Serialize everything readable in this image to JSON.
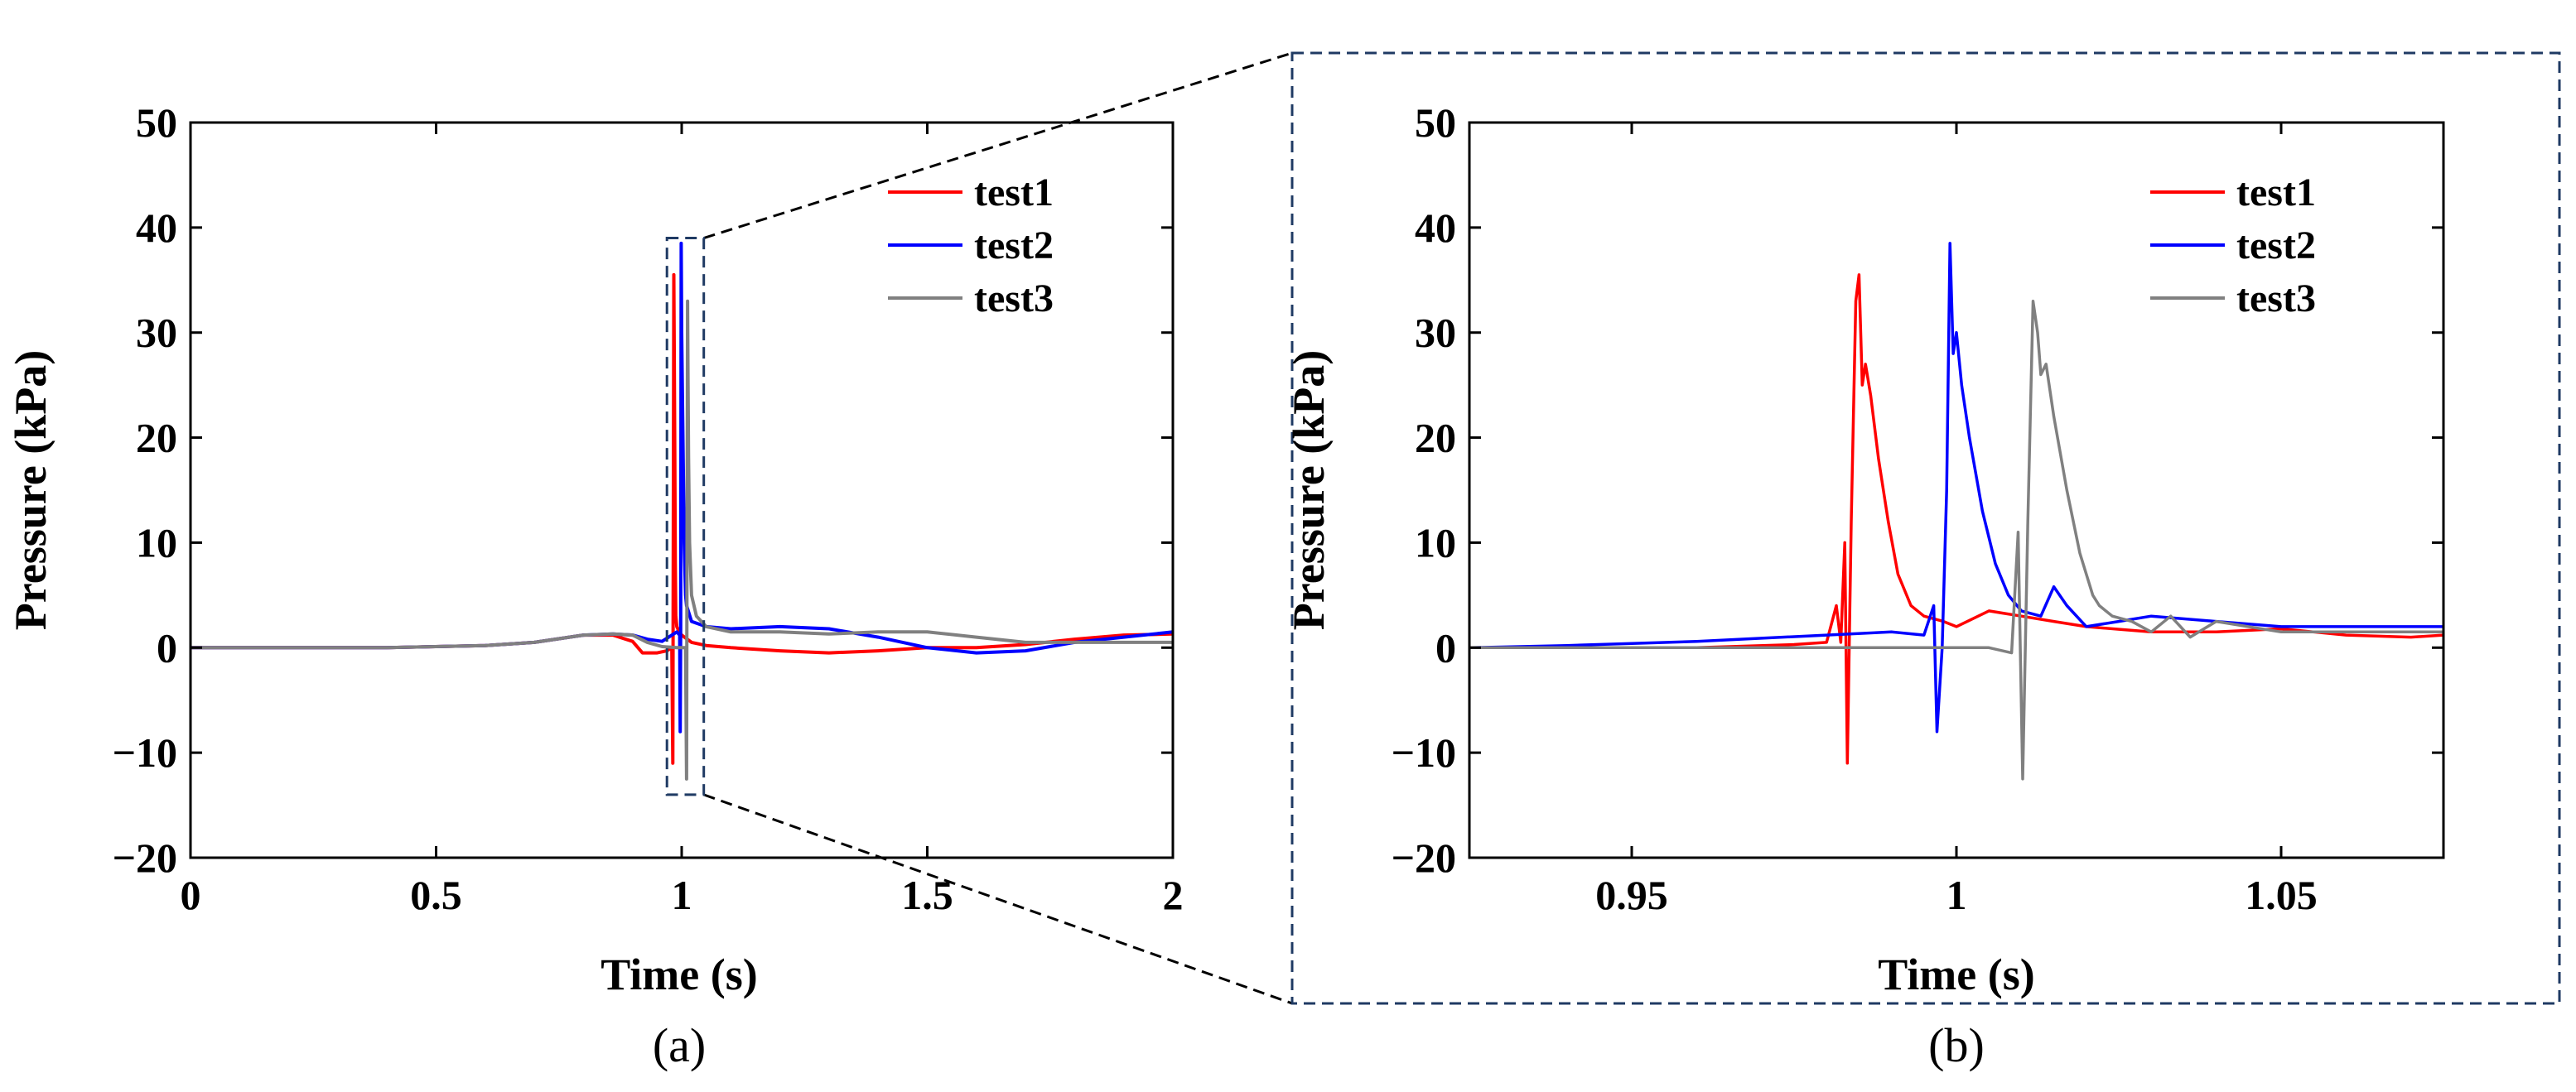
{
  "colors": {
    "test1": "#ff0000",
    "test2": "#0000ff",
    "test3": "#808080",
    "inset_border": "#1f3a63"
  },
  "chart_data": [
    {
      "id": "a",
      "type": "line",
      "panel_label": "(a)",
      "xlabel": "Time (s)",
      "ylabel": "Pressure (kPa)",
      "xlim": [
        0,
        2
      ],
      "ylim": [
        -20,
        50
      ],
      "xticks": [
        0,
        0.5,
        1,
        1.5,
        2
      ],
      "xtick_labels": [
        "0",
        "0.5",
        "1",
        "1.5",
        "2"
      ],
      "yticks": [
        -20,
        -10,
        0,
        10,
        20,
        30,
        40,
        50
      ],
      "ytick_labels": [
        "−20",
        "−10",
        "0",
        "10",
        "20",
        "30",
        "40",
        "50"
      ],
      "legend_position": "top-right",
      "zoom_box": {
        "x": [
          0.97,
          1.045
        ],
        "y": [
          -14,
          39
        ]
      },
      "series": [
        {
          "name": "test1",
          "color": "#ff0000",
          "x": [
            0,
            0.2,
            0.4,
            0.6,
            0.7,
            0.8,
            0.86,
            0.9,
            0.92,
            0.95,
            0.97,
            0.98,
            0.982,
            0.983,
            0.984,
            0.985,
            0.986,
            0.987,
            0.988,
            0.99,
            0.995,
            1.0,
            1.02,
            1.05,
            1.1,
            1.2,
            1.3,
            1.4,
            1.5,
            1.6,
            1.7,
            1.8,
            1.9,
            2.0
          ],
          "y": [
            0,
            0,
            0,
            0.2,
            0.5,
            1.2,
            1.2,
            0.6,
            -0.5,
            -0.5,
            -0.3,
            0,
            -11,
            12,
            35.5,
            27,
            18,
            8,
            3,
            2,
            1.5,
            1.2,
            0.5,
            0.2,
            0,
            -0.3,
            -0.5,
            -0.3,
            0,
            0,
            0.3,
            0.8,
            1.2,
            1.3
          ]
        },
        {
          "name": "test2",
          "color": "#0000ff",
          "x": [
            0,
            0.2,
            0.4,
            0.6,
            0.7,
            0.8,
            0.86,
            0.9,
            0.93,
            0.96,
            0.99,
            0.996,
            0.997,
            0.998,
            0.999,
            1.0,
            1.002,
            1.005,
            1.008,
            1.01,
            1.02,
            1.05,
            1.1,
            1.2,
            1.3,
            1.4,
            1.5,
            1.6,
            1.7,
            1.8,
            1.9,
            2.0
          ],
          "y": [
            0,
            0,
            0,
            0.2,
            0.5,
            1.2,
            1.3,
            1.2,
            0.8,
            0.6,
            1.5,
            1.2,
            -8,
            2,
            38.5,
            30,
            22,
            10,
            5,
            4,
            2.5,
            2,
            1.8,
            2,
            1.8,
            1,
            0,
            -0.5,
            -0.3,
            0.5,
            1,
            1.5
          ]
        },
        {
          "name": "test3",
          "color": "#808080",
          "x": [
            0,
            0.2,
            0.4,
            0.6,
            0.7,
            0.8,
            0.86,
            0.9,
            0.93,
            0.96,
            0.99,
            1.008,
            1.01,
            1.011,
            1.012,
            1.013,
            1.014,
            1.016,
            1.02,
            1.03,
            1.05,
            1.1,
            1.2,
            1.3,
            1.4,
            1.5,
            1.6,
            1.7,
            1.8,
            1.9,
            2.0
          ],
          "y": [
            0,
            0,
            0,
            0.2,
            0.5,
            1.2,
            1.3,
            1.2,
            0.5,
            0.1,
            0,
            0,
            -12.5,
            12,
            33,
            25,
            18,
            10,
            5,
            3,
            2,
            1.5,
            1.5,
            1.3,
            1.5,
            1.5,
            1,
            0.5,
            0.5,
            0.5,
            0.5
          ]
        }
      ]
    },
    {
      "id": "b",
      "type": "line",
      "panel_label": "(b)",
      "xlabel": "Time (s)",
      "ylabel": "Pressure (kPa)",
      "xlim": [
        0.925,
        1.075
      ],
      "ylim": [
        -20,
        50
      ],
      "xticks": [
        0.95,
        1,
        1.05
      ],
      "xtick_labels": [
        "0.95",
        "1",
        "1.05"
      ],
      "yticks": [
        -20,
        -10,
        0,
        10,
        20,
        30,
        40,
        50
      ],
      "ytick_labels": [
        "−20",
        "−10",
        "0",
        "10",
        "20",
        "30",
        "40",
        "50"
      ],
      "legend_position": "top-right",
      "series": [
        {
          "name": "test1",
          "color": "#ff0000",
          "x": [
            0.925,
            0.94,
            0.96,
            0.975,
            0.98,
            0.9815,
            0.9822,
            0.9828,
            0.9832,
            0.9838,
            0.9845,
            0.985,
            0.9855,
            0.986,
            0.9868,
            0.988,
            0.9895,
            0.991,
            0.993,
            0.995,
            0.998,
            1.0,
            1.005,
            1.01,
            1.015,
            1.02,
            1.03,
            1.04,
            1.05,
            1.06,
            1.07,
            1.075
          ],
          "y": [
            0,
            0,
            0,
            0.3,
            0.5,
            4,
            0.5,
            10,
            -11,
            12,
            33,
            35.5,
            25,
            27,
            24,
            18,
            12,
            7,
            4,
            3,
            2.5,
            2,
            3.5,
            3,
            2.5,
            2,
            1.5,
            1.5,
            1.8,
            1.2,
            1,
            1.2
          ]
        },
        {
          "name": "test2",
          "color": "#0000ff",
          "x": [
            0.925,
            0.94,
            0.95,
            0.96,
            0.97,
            0.98,
            0.99,
            0.995,
            0.9965,
            0.997,
            0.9978,
            0.9985,
            0.999,
            0.9995,
            1.0,
            1.0008,
            1.002,
            1.004,
            1.006,
            1.008,
            1.01,
            1.013,
            1.015,
            1.017,
            1.02,
            1.025,
            1.03,
            1.04,
            1.05,
            1.06,
            1.075
          ],
          "y": [
            0,
            0.2,
            0.4,
            0.6,
            0.9,
            1.2,
            1.5,
            1.2,
            4,
            -8,
            0,
            15,
            38.5,
            28,
            30,
            25,
            20,
            13,
            8,
            5,
            3.5,
            3,
            5.8,
            4,
            2,
            2.5,
            3,
            2.5,
            2,
            2,
            2
          ]
        },
        {
          "name": "test3",
          "color": "#808080",
          "x": [
            0.925,
            0.94,
            0.96,
            0.98,
            0.99,
            1.0,
            1.005,
            1.0085,
            1.0095,
            1.0102,
            1.011,
            1.0118,
            1.0125,
            1.013,
            1.0138,
            1.015,
            1.017,
            1.019,
            1.021,
            1.022,
            1.024,
            1.027,
            1.03,
            1.033,
            1.036,
            1.04,
            1.05,
            1.06,
            1.075
          ],
          "y": [
            0,
            0,
            0,
            0,
            0,
            0,
            0,
            -0.5,
            11,
            -12.5,
            12,
            33,
            30,
            26,
            27,
            22,
            15,
            9,
            5,
            4,
            3,
            2.5,
            1.5,
            3,
            1,
            2.5,
            1.5,
            1.5,
            1.5
          ]
        }
      ]
    }
  ]
}
